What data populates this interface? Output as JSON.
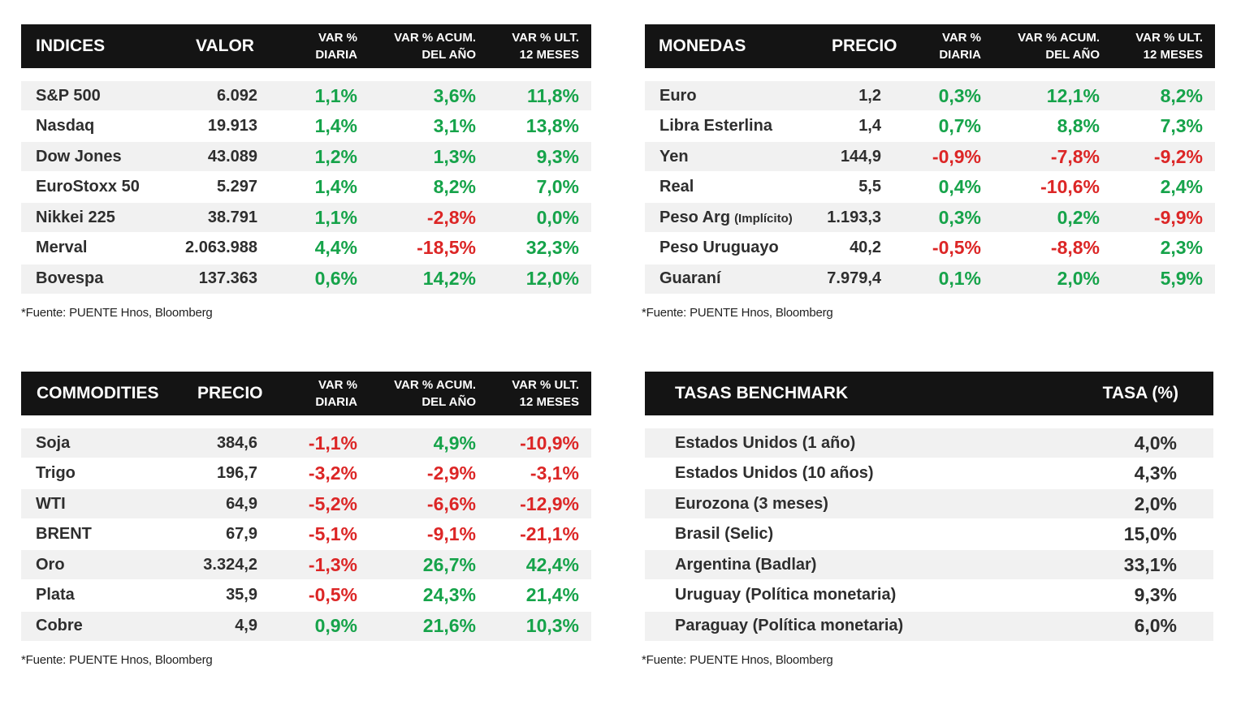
{
  "source_text": "*Fuente: PUENTE Hnos, Bloomberg",
  "indices": {
    "headers": [
      "INDICES",
      "VALOR",
      "VAR %\nDIARIA",
      "VAR % ACUM.\nDEL AÑO",
      "VAR % ULT.\n12 MESES"
    ],
    "rows": [
      {
        "name": "S&P 500",
        "value": "6.092",
        "d": "1,1%",
        "y": "3,6%",
        "m": "11,8%"
      },
      {
        "name": "Nasdaq",
        "value": "19.913",
        "d": "1,4%",
        "y": "3,1%",
        "m": "13,8%"
      },
      {
        "name": "Dow Jones",
        "value": "43.089",
        "d": "1,2%",
        "y": "1,3%",
        "m": "9,3%"
      },
      {
        "name": "EuroStoxx 50",
        "value": "5.297",
        "d": "1,4%",
        "y": "8,2%",
        "m": "7,0%"
      },
      {
        "name": "Nikkei 225",
        "value": "38.791",
        "d": "1,1%",
        "y": "-2,8%",
        "m": "0,0%"
      },
      {
        "name": "Merval",
        "value": "2.063.988",
        "d": "4,4%",
        "y": "-18,5%",
        "m": "32,3%"
      },
      {
        "name": "Bovespa",
        "value": "137.363",
        "d": "0,6%",
        "y": "14,2%",
        "m": "12,0%"
      }
    ]
  },
  "monedas": {
    "headers": [
      "MONEDAS",
      "PRECIO",
      "VAR %\nDIARIA",
      "VAR % ACUM.\nDEL AÑO",
      "VAR % ULT.\n12 MESES"
    ],
    "rows": [
      {
        "name": "Euro",
        "value": "1,2",
        "d": "0,3%",
        "y": "12,1%",
        "m": "8,2%"
      },
      {
        "name": "Libra Esterlina",
        "value": "1,4",
        "d": "0,7%",
        "y": "8,8%",
        "m": "7,3%"
      },
      {
        "name": "Yen",
        "value": "144,9",
        "d": "-0,9%",
        "y": "-7,8%",
        "m": "-9,2%"
      },
      {
        "name": "Real",
        "value": "5,5",
        "d": "0,4%",
        "y": "-10,6%",
        "m": "2,4%"
      },
      {
        "name": "Peso Arg",
        "note": "(Implícito)",
        "value": "1.193,3",
        "d": "0,3%",
        "y": "0,2%",
        "m": "-9,9%"
      },
      {
        "name": "Peso Uruguayo",
        "value": "40,2",
        "d": "-0,5%",
        "y": "-8,8%",
        "m": "2,3%"
      },
      {
        "name": "Guaraní",
        "value": "7.979,4",
        "d": "0,1%",
        "y": "2,0%",
        "m": "5,9%"
      }
    ]
  },
  "commodities": {
    "headers": [
      "COMMODITIES",
      "PRECIO",
      "VAR %\nDIARIA",
      "VAR % ACUM.\nDEL AÑO",
      "VAR % ULT.\n12 MESES"
    ],
    "rows": [
      {
        "name": "Soja",
        "value": "384,6",
        "d": "-1,1%",
        "y": "4,9%",
        "m": "-10,9%"
      },
      {
        "name": "Trigo",
        "value": "196,7",
        "d": "-3,2%",
        "y": "-2,9%",
        "m": "-3,1%"
      },
      {
        "name": "WTI",
        "value": "64,9",
        "d": "-5,2%",
        "y": "-6,6%",
        "m": "-12,9%"
      },
      {
        "name": "BRENT",
        "value": "67,9",
        "d": "-5,1%",
        "y": "-9,1%",
        "m": "-21,1%"
      },
      {
        "name": "Oro",
        "value": "3.324,2",
        "d": "-1,3%",
        "y": "26,7%",
        "m": "42,4%"
      },
      {
        "name": "Plata",
        "value": "35,9",
        "d": "-0,5%",
        "y": "24,3%",
        "m": "21,4%"
      },
      {
        "name": "Cobre",
        "value": "4,9",
        "d": "0,9%",
        "y": "21,6%",
        "m": "10,3%"
      }
    ]
  },
  "tasas": {
    "headers": [
      "TASAS BENCHMARK",
      "TASA (%)"
    ],
    "rows": [
      {
        "name": "Estados Unidos (1 año)",
        "rate": "4,0%"
      },
      {
        "name": "Estados Unidos (10 años)",
        "rate": "4,3%"
      },
      {
        "name": "Eurozona (3 meses)",
        "rate": "2,0%"
      },
      {
        "name": "Brasil (Selic)",
        "rate": "15,0%"
      },
      {
        "name": "Argentina (Badlar)",
        "rate": "33,1%"
      },
      {
        "name": "Uruguay (Política monetaria)",
        "rate": "9,3%"
      },
      {
        "name": "Paraguay (Política monetaria)",
        "rate": "6,0%"
      }
    ]
  },
  "colors": {
    "header_bg": "#141414",
    "positive": "#16a34a",
    "negative": "#dc2626",
    "row_shade": "#f1f1f1"
  }
}
